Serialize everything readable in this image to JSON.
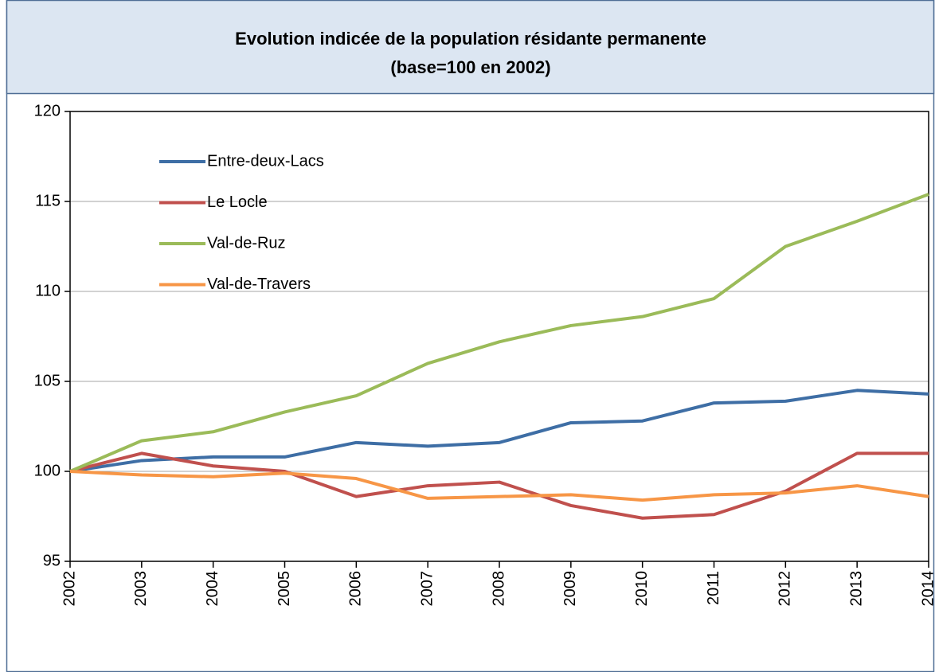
{
  "chart_data": {
    "type": "line",
    "title": "Evolution  indicée de la population résidante permanente",
    "subtitle": "(base=100 en 2002)",
    "categories": [
      "2002",
      "2003",
      "2004",
      "2005",
      "2006",
      "2007",
      "2008",
      "2009",
      "2010",
      "2011",
      "2012",
      "2013",
      "2014"
    ],
    "series": [
      {
        "name": "Entre-deux-Lacs",
        "color": "#3e6ea5",
        "values": [
          100,
          100.6,
          100.8,
          100.8,
          101.6,
          101.4,
          101.6,
          102.7,
          102.8,
          103.8,
          103.9,
          104.5,
          104.3
        ]
      },
      {
        "name": "Le Locle",
        "color": "#c0504d",
        "values": [
          100,
          101.0,
          100.3,
          100.0,
          98.6,
          99.2,
          99.4,
          98.1,
          97.4,
          97.6,
          98.9,
          101.0,
          101.0
        ]
      },
      {
        "name": "Val-de-Ruz",
        "color": "#9bbb59",
        "values": [
          100,
          101.7,
          102.2,
          103.3,
          104.2,
          106.0,
          107.2,
          108.1,
          108.6,
          109.6,
          112.5,
          113.9,
          115.4
        ]
      },
      {
        "name": "Val-de-Travers",
        "color": "#f79646",
        "values": [
          100,
          99.8,
          99.7,
          99.9,
          99.6,
          98.5,
          98.6,
          98.7,
          98.4,
          98.7,
          98.8,
          99.2,
          98.6
        ]
      }
    ],
    "ylim": [
      95,
      120
    ],
    "yticks": [
      95,
      100,
      105,
      110,
      115,
      120
    ],
    "grid": true,
    "legend": "top-left"
  }
}
